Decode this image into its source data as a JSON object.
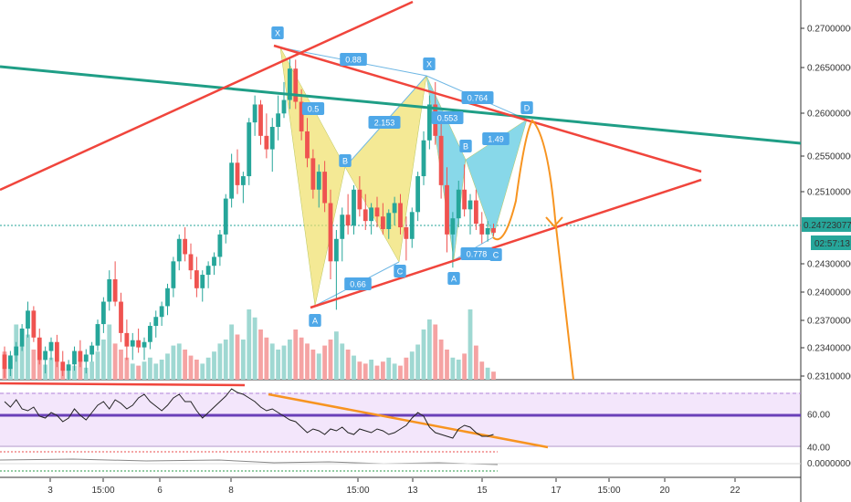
{
  "chart_data": {
    "type": "candlestick",
    "price_axis": {
      "ticks": [
        "0.27000000",
        "0.26500000",
        "0.26000000",
        "0.25500000",
        "0.25100000",
        "0.24300000",
        "0.24000000",
        "0.23700000",
        "0.23400000",
        "0.23100000"
      ],
      "current_price": "0.24723077",
      "countdown": "02:57:13"
    },
    "oscillator_axis": {
      "ticks": [
        "60.00",
        "40.00"
      ]
    },
    "macd_axis": {
      "ticks": [
        "0.00000000"
      ]
    },
    "time_axis": {
      "ticks": [
        "3",
        "15:00",
        "6",
        "8",
        "15:00",
        "13",
        "15",
        "17",
        "15:00",
        "20",
        "22"
      ]
    },
    "harmonic_points": [
      {
        "label": "X",
        "value": 0.2667
      },
      {
        "label": "A",
        "value": 0.2386
      },
      {
        "label": "B",
        "value": 0.2535
      },
      {
        "label": "C",
        "value": 0.2441
      },
      {
        "label": "X",
        "value": 0.264
      },
      {
        "label": "A",
        "value": 0.2433
      },
      {
        "label": "B",
        "value": 0.2548
      },
      {
        "label": "C",
        "value": 0.2467
      },
      {
        "label": "D",
        "value": 0.2592
      }
    ],
    "ratios": [
      "0.88",
      "0.5",
      "2.153",
      "0.66",
      "0.764",
      "0.553",
      "1.49",
      "0.778"
    ],
    "candles": [
      [
        0.2336,
        0.2345,
        0.231,
        0.232
      ],
      [
        0.232,
        0.234,
        0.2312,
        0.2335
      ],
      [
        0.2335,
        0.235,
        0.2328,
        0.2345
      ],
      [
        0.2345,
        0.237,
        0.234,
        0.2365
      ],
      [
        0.2365,
        0.2395,
        0.2355,
        0.2385
      ],
      [
        0.2385,
        0.239,
        0.235,
        0.2355
      ],
      [
        0.2355,
        0.2365,
        0.2325,
        0.233
      ],
      [
        0.233,
        0.2345,
        0.2315,
        0.234
      ],
      [
        0.234,
        0.2355,
        0.233,
        0.235
      ],
      [
        0.235,
        0.2358,
        0.2322,
        0.2328
      ],
      [
        0.2328,
        0.234,
        0.2312,
        0.2318
      ],
      [
        0.2318,
        0.233,
        0.2308,
        0.2325
      ],
      [
        0.2325,
        0.2345,
        0.2318,
        0.234
      ],
      [
        0.234,
        0.2352,
        0.2322,
        0.2328
      ],
      [
        0.2328,
        0.2342,
        0.2315,
        0.2336
      ],
      [
        0.2336,
        0.235,
        0.2328,
        0.2346
      ],
      [
        0.2346,
        0.2375,
        0.234,
        0.237
      ],
      [
        0.237,
        0.24,
        0.236,
        0.2395
      ],
      [
        0.2395,
        0.243,
        0.2385,
        0.242
      ],
      [
        0.242,
        0.244,
        0.239,
        0.2395
      ],
      [
        0.2395,
        0.2405,
        0.235,
        0.236
      ],
      [
        0.236,
        0.2375,
        0.233,
        0.2345
      ],
      [
        0.2345,
        0.236,
        0.233,
        0.2352
      ],
      [
        0.2352,
        0.2365,
        0.2338,
        0.2344
      ],
      [
        0.2344,
        0.2355,
        0.233,
        0.235
      ],
      [
        0.235,
        0.2372,
        0.2342,
        0.2368
      ],
      [
        0.2368,
        0.2385,
        0.2355,
        0.2378
      ],
      [
        0.2378,
        0.2395,
        0.2368,
        0.239
      ],
      [
        0.239,
        0.2415,
        0.238,
        0.241
      ],
      [
        0.241,
        0.2445,
        0.24,
        0.244
      ],
      [
        0.244,
        0.247,
        0.243,
        0.2465
      ],
      [
        0.2465,
        0.2478,
        0.244,
        0.2448
      ],
      [
        0.2448,
        0.246,
        0.242,
        0.243
      ],
      [
        0.243,
        0.2445,
        0.24,
        0.241
      ],
      [
        0.241,
        0.243,
        0.2395,
        0.2425
      ],
      [
        0.2425,
        0.244,
        0.241,
        0.2435
      ],
      [
        0.2435,
        0.245,
        0.2425,
        0.2445
      ],
      [
        0.2445,
        0.2475,
        0.2435,
        0.247
      ],
      [
        0.247,
        0.2515,
        0.246,
        0.251
      ],
      [
        0.251,
        0.256,
        0.25,
        0.255
      ],
      [
        0.255,
        0.2565,
        0.2515,
        0.2525
      ],
      [
        0.2525,
        0.254,
        0.2505,
        0.2535
      ],
      [
        0.2535,
        0.26,
        0.2525,
        0.2595
      ],
      [
        0.2595,
        0.2625,
        0.258,
        0.2615
      ],
      [
        0.2615,
        0.262,
        0.257,
        0.258
      ],
      [
        0.258,
        0.2605,
        0.2555,
        0.2565
      ],
      [
        0.2565,
        0.26,
        0.254,
        0.259
      ],
      [
        0.259,
        0.2625,
        0.2575,
        0.2605
      ],
      [
        0.2605,
        0.264,
        0.26,
        0.262
      ],
      [
        0.262,
        0.2668,
        0.261,
        0.2655
      ],
      [
        0.2655,
        0.2665,
        0.261,
        0.2618
      ],
      [
        0.2618,
        0.2632,
        0.2575,
        0.2585
      ],
      [
        0.2585,
        0.26,
        0.2545,
        0.2555
      ],
      [
        0.2555,
        0.2565,
        0.251,
        0.252
      ],
      [
        0.252,
        0.2548,
        0.25,
        0.254
      ],
      [
        0.254,
        0.2552,
        0.2495,
        0.2505
      ],
      [
        0.2505,
        0.252,
        0.242,
        0.244
      ],
      [
        0.244,
        0.2475,
        0.2386,
        0.2465
      ],
      [
        0.2465,
        0.25,
        0.244,
        0.2492
      ],
      [
        0.2492,
        0.2515,
        0.247,
        0.248
      ],
      [
        0.248,
        0.2525,
        0.247,
        0.252
      ],
      [
        0.252,
        0.2535,
        0.249,
        0.2498
      ],
      [
        0.2498,
        0.2515,
        0.2475,
        0.2485
      ],
      [
        0.2485,
        0.2505,
        0.247,
        0.25
      ],
      [
        0.25,
        0.2512,
        0.2478,
        0.249
      ],
      [
        0.249,
        0.2505,
        0.247,
        0.2476
      ],
      [
        0.2476,
        0.2498,
        0.2465,
        0.2494
      ],
      [
        0.2494,
        0.2512,
        0.248,
        0.2505
      ],
      [
        0.2505,
        0.2515,
        0.247,
        0.2478
      ],
      [
        0.2478,
        0.249,
        0.2441,
        0.2465
      ],
      [
        0.2465,
        0.25,
        0.2455,
        0.2495
      ],
      [
        0.2495,
        0.254,
        0.2485,
        0.2535
      ],
      [
        0.2535,
        0.2585,
        0.2525,
        0.2575
      ],
      [
        0.2575,
        0.2625,
        0.2565,
        0.2615
      ],
      [
        0.2615,
        0.264,
        0.257,
        0.258
      ],
      [
        0.258,
        0.2595,
        0.251,
        0.2525
      ],
      [
        0.2525,
        0.2545,
        0.245,
        0.247
      ],
      [
        0.247,
        0.2495,
        0.2433,
        0.2488
      ],
      [
        0.2488,
        0.253,
        0.2478,
        0.252
      ],
      [
        0.252,
        0.2548,
        0.249,
        0.2498
      ],
      [
        0.2498,
        0.2515,
        0.247,
        0.2508
      ],
      [
        0.2508,
        0.252,
        0.2475,
        0.2482
      ],
      [
        0.2482,
        0.2495,
        0.246,
        0.247
      ],
      [
        0.247,
        0.2485,
        0.2462,
        0.2477
      ],
      [
        0.2477,
        0.2482,
        0.2468,
        0.2472
      ]
    ],
    "volumes": [
      0.28,
      0.2,
      0.55,
      0.35,
      0.45,
      0.3,
      0.2,
      0.15,
      0.22,
      0.18,
      0.12,
      0.1,
      0.14,
      0.2,
      0.12,
      0.18,
      0.28,
      0.4,
      0.55,
      0.36,
      0.3,
      0.22,
      0.16,
      0.14,
      0.18,
      0.22,
      0.16,
      0.2,
      0.26,
      0.34,
      0.36,
      0.3,
      0.24,
      0.2,
      0.16,
      0.22,
      0.28,
      0.36,
      0.4,
      0.55,
      0.45,
      0.4,
      0.7,
      0.62,
      0.5,
      0.42,
      0.36,
      0.3,
      0.34,
      0.4,
      0.5,
      0.42,
      0.36,
      0.3,
      0.26,
      0.34,
      0.4,
      0.48,
      0.36,
      0.3,
      0.24,
      0.18,
      0.16,
      0.2,
      0.14,
      0.18,
      0.22,
      0.16,
      0.14,
      0.22,
      0.28,
      0.35,
      0.5,
      0.6,
      0.55,
      0.4,
      0.3,
      0.22,
      0.2,
      0.26,
      0.7,
      0.34,
      0.18,
      0.12,
      0.08
    ],
    "colors": {
      "up": "#26a69a",
      "down": "#ef5350",
      "pattern1": "#f0e068",
      "pattern2": "#56c8e0",
      "teal_line": "#1f9e86",
      "red_line": "#f0453c",
      "orange": "#f79420",
      "rsi": "#7e57c2",
      "label_bg": "#4fa8e8"
    }
  }
}
